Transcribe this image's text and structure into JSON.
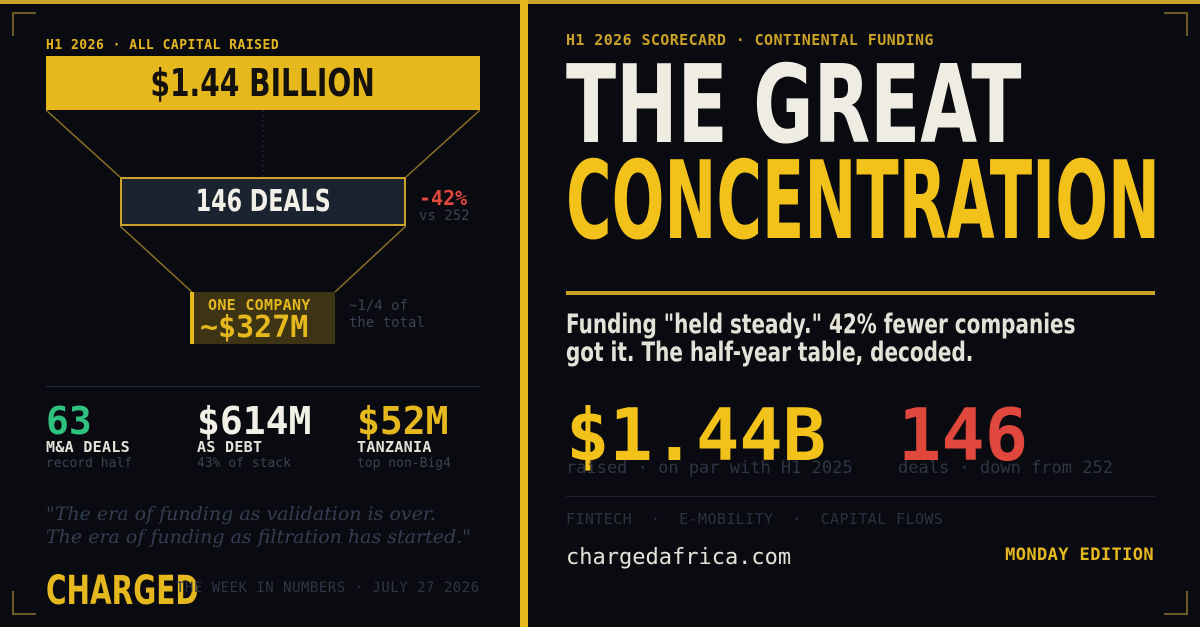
{
  "left": {
    "kicker": "H1 2026 · ALL CAPITAL RAISED",
    "total_bar": "$1.44 BILLION",
    "deals_bar": "146 DEALS",
    "deals_change": "-42%",
    "deals_compare": "vs 252",
    "one_company_label": "ONE COMPANY",
    "one_company_value": "~$327M",
    "one_company_note_1": "~1/4 of",
    "one_company_note_2": "the total",
    "stats": [
      {
        "value": "63",
        "label": "M&A DEALS",
        "sub": "record half"
      },
      {
        "value": "$614M",
        "label": "AS DEBT",
        "sub": "43% of stack"
      },
      {
        "value": "$52M",
        "label": "TANZANIA",
        "sub": "top non-Big4"
      }
    ],
    "quote_line_1": "\"The era of funding as validation is over.",
    "quote_line_2": "The era of funding as filtration has started.\"",
    "brand": "CHARGED",
    "footer": "THE WEEK IN NUMBERS · JULY 27 2026"
  },
  "right": {
    "kicker": "H1 2026 SCORECARD · CONTINENTAL FUNDING",
    "headline_1": "THE GREAT",
    "headline_2": "CONCENTRATION",
    "deck_1": "Funding \"held steady.\" 42% fewer companies",
    "deck_2": "got it. The half-year table, decoded.",
    "big_raised": "$1.44B",
    "big_raised_sub": "raised · on par with H1 2025",
    "big_deals": "146",
    "big_deals_sub": "deals · down from 252",
    "tags": "FINTECH  ·  E-MOBILITY  ·  CAPITAL FLOWS",
    "site": "chargedafrica.com",
    "edition": "MONDAY EDITION"
  },
  "colors": {
    "background": "#0a0b10",
    "accent_gold": "#e5b81e",
    "headline_gold": "#f2c21b",
    "negative_red": "#e0483e",
    "positive_green": "#2ec27e",
    "text_light": "#efede3"
  }
}
